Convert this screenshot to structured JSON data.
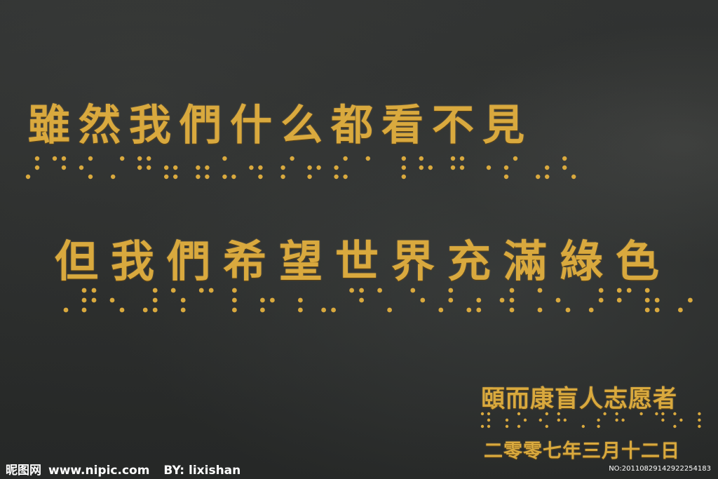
{
  "inscription": {
    "line1": "雖然我們什么都看不見",
    "line2": "但我們希望世界充滿綠色",
    "signature": "頤而康盲人志愿者",
    "date": "二零零七年三月十二日"
  },
  "watermark": {
    "site_name": "昵图网",
    "site_url": "www.nipic.com",
    "author": "BY: lixishan",
    "image_number": "NO:20110829142922254183"
  },
  "colors": {
    "gold": "#d9a93e",
    "stone": "#2a2c2b",
    "watermark": "#ffffff"
  }
}
